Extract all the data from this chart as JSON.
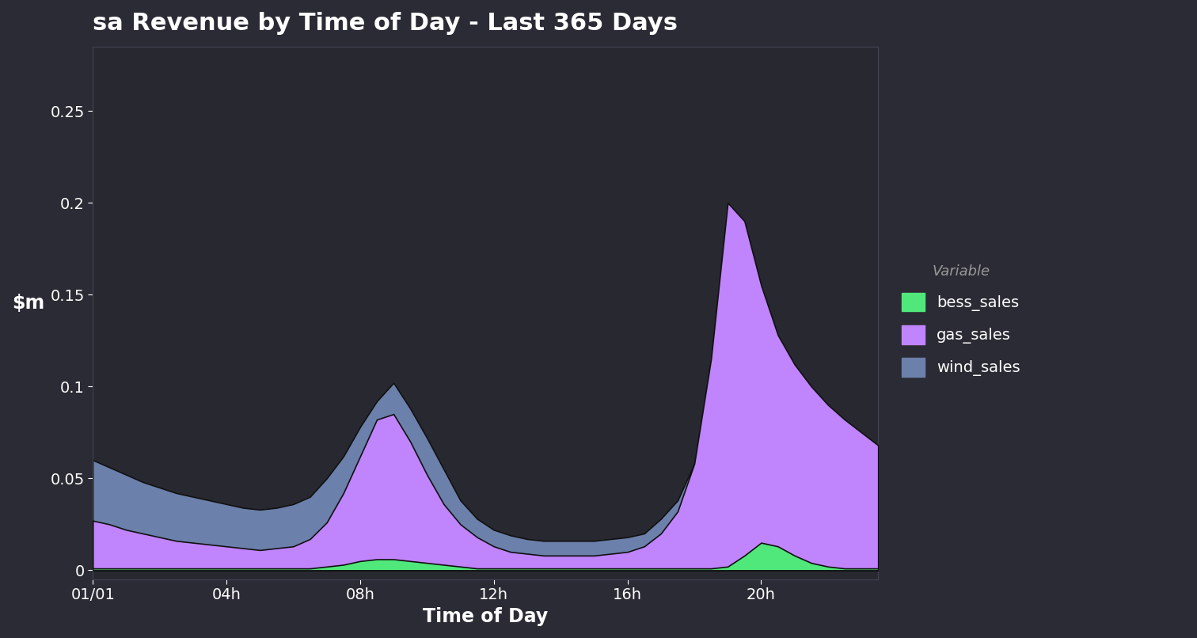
{
  "title": "sa Revenue by Time of Day - Last 365 Days",
  "xlabel": "Time of Day",
  "background_color": "#2b2b35",
  "plot_bg_color": "#282830",
  "text_color": "#ffffff",
  "title_fontsize": 22,
  "label_fontsize": 17,
  "tick_fontsize": 14,
  "legend_title": "Variable",
  "legend_title_color": "#999999",
  "legend_label_color": "#ffffff",
  "colors": {
    "bess_sales": "#50e87a",
    "gas_sales": "#c084fc",
    "wind_sales": "#6b80aa"
  },
  "hours": [
    0,
    0.5,
    1,
    1.5,
    2,
    2.5,
    3,
    3.5,
    4,
    4.5,
    5,
    5.5,
    6,
    6.5,
    7,
    7.5,
    8,
    8.5,
    9,
    9.5,
    10,
    10.5,
    11,
    11.5,
    12,
    12.5,
    13,
    13.5,
    14,
    14.5,
    15,
    15.5,
    16,
    16.5,
    17,
    17.5,
    18,
    18.5,
    19,
    19.5,
    20,
    20.5,
    21,
    21.5,
    22,
    22.5,
    23,
    23.5
  ],
  "wind_sales": [
    0.06,
    0.056,
    0.052,
    0.048,
    0.045,
    0.042,
    0.04,
    0.038,
    0.036,
    0.034,
    0.033,
    0.034,
    0.036,
    0.04,
    0.05,
    0.062,
    0.078,
    0.092,
    0.102,
    0.088,
    0.072,
    0.055,
    0.038,
    0.028,
    0.022,
    0.019,
    0.017,
    0.016,
    0.016,
    0.016,
    0.016,
    0.017,
    0.018,
    0.02,
    0.028,
    0.038,
    0.058,
    0.085,
    0.11,
    0.13,
    0.118,
    0.108,
    0.1,
    0.092,
    0.085,
    0.078,
    0.072,
    0.066
  ],
  "gas_sales": [
    0.027,
    0.025,
    0.022,
    0.02,
    0.018,
    0.016,
    0.015,
    0.014,
    0.013,
    0.012,
    0.011,
    0.012,
    0.013,
    0.017,
    0.026,
    0.042,
    0.062,
    0.082,
    0.085,
    0.07,
    0.052,
    0.036,
    0.025,
    0.018,
    0.013,
    0.01,
    0.009,
    0.008,
    0.008,
    0.008,
    0.008,
    0.009,
    0.01,
    0.013,
    0.02,
    0.032,
    0.058,
    0.115,
    0.2,
    0.19,
    0.155,
    0.128,
    0.112,
    0.1,
    0.09,
    0.082,
    0.075,
    0.068
  ],
  "bess_sales": [
    0.001,
    0.001,
    0.001,
    0.001,
    0.001,
    0.001,
    0.001,
    0.001,
    0.001,
    0.001,
    0.001,
    0.001,
    0.001,
    0.001,
    0.002,
    0.003,
    0.005,
    0.006,
    0.006,
    0.005,
    0.004,
    0.003,
    0.002,
    0.001,
    0.001,
    0.001,
    0.001,
    0.001,
    0.001,
    0.001,
    0.001,
    0.001,
    0.001,
    0.001,
    0.001,
    0.001,
    0.001,
    0.001,
    0.002,
    0.008,
    0.015,
    0.013,
    0.008,
    0.004,
    0.002,
    0.001,
    0.001,
    0.001
  ],
  "xtick_positions": [
    0,
    4,
    8,
    12,
    16,
    20
  ],
  "xtick_labels": [
    "01/01",
    "04h",
    "08h",
    "12h",
    "16h",
    "20h"
  ],
  "ylim": [
    -0.005,
    0.285
  ],
  "yticks": [
    0,
    0.05,
    0.1,
    0.15,
    0.2,
    0.25
  ]
}
